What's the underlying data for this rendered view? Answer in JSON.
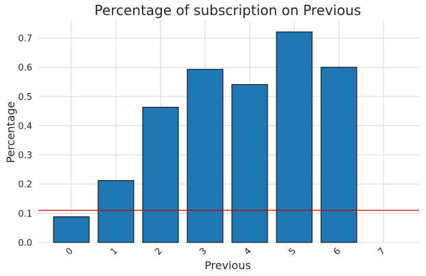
{
  "chart_data": {
    "type": "bar",
    "title": "Percentage of subscription on Previous",
    "xlabel": "Previous",
    "ylabel": "Percentage",
    "categories": [
      "0",
      "1",
      "2",
      "3",
      "4",
      "5",
      "6",
      "7"
    ],
    "values": [
      0.088,
      0.212,
      0.463,
      0.593,
      0.541,
      0.721,
      0.6,
      0
    ],
    "ylim": [
      0,
      0.76
    ],
    "yticks": [
      "0.0",
      "0.1",
      "0.2",
      "0.3",
      "0.4",
      "0.5",
      "0.6",
      "0.7"
    ],
    "reference_line": 0.11,
    "grid": true,
    "colors": {
      "bar": "#1f77b4",
      "bar_edge": "#000000",
      "reference_line": "#cc0000",
      "grid": "#d9d9d9"
    }
  }
}
